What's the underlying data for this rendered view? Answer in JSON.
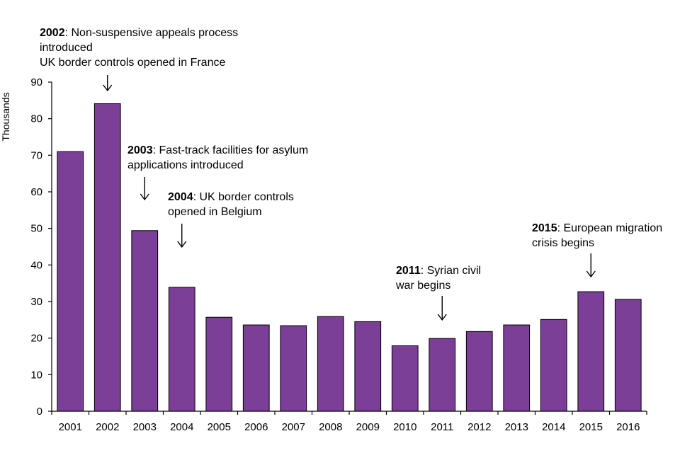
{
  "colors": {
    "bar": "#7b3f98",
    "bar_border": "#000000",
    "axis": "#000000"
  },
  "chart_data": {
    "type": "bar",
    "categories": [
      "2001",
      "2002",
      "2003",
      "2004",
      "2005",
      "2006",
      "2007",
      "2008",
      "2009",
      "2010",
      "2011",
      "2012",
      "2013",
      "2014",
      "2015",
      "2016"
    ],
    "values": [
      71.0,
      84.1,
      49.4,
      33.9,
      25.7,
      23.6,
      23.4,
      25.9,
      24.5,
      17.9,
      19.9,
      21.8,
      23.6,
      25.1,
      32.7,
      30.6
    ],
    "ylabel": "Thousands",
    "xlabel": "",
    "ylim": [
      0,
      90
    ],
    "yticks": [
      0,
      10,
      20,
      30,
      40,
      50,
      60,
      70,
      80,
      90
    ],
    "grid": false,
    "annotations": [
      {
        "year": "2002",
        "lines": [
          "2002: Non-suspensive appeals process",
          "introduced",
          "UK border controls opened in France"
        ]
      },
      {
        "year": "2003",
        "lines": [
          "2003: Fast-track facilities for asylum",
          "applications introduced"
        ]
      },
      {
        "year": "2004",
        "lines": [
          "2004: UK border controls",
          "opened in Belgium"
        ]
      },
      {
        "year": "2011",
        "lines": [
          "2011: Syrian civil",
          "war begins"
        ]
      },
      {
        "year": "2015",
        "lines": [
          "2015: European migration",
          "crisis begins"
        ]
      }
    ]
  }
}
